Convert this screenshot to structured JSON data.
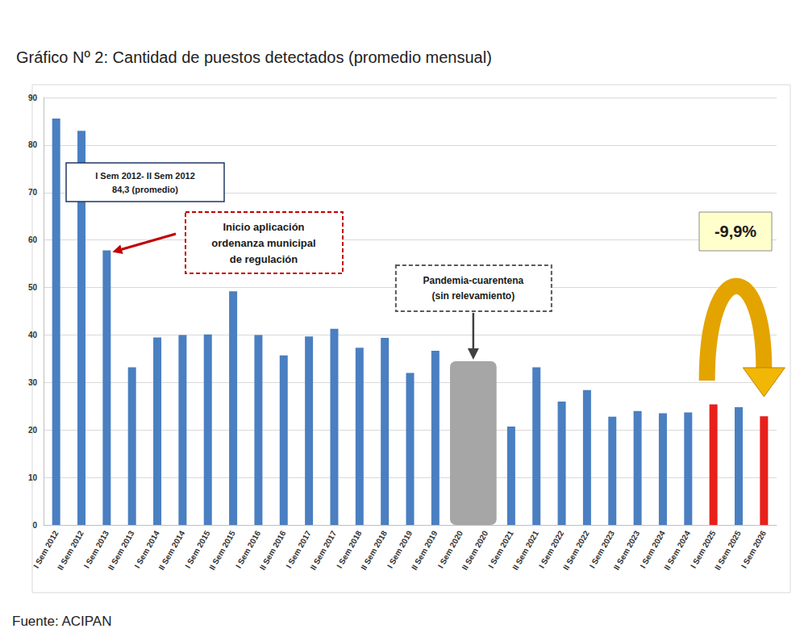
{
  "chart_data": {
    "type": "bar",
    "title": "Gráfico Nº 2: Cantidad de puestos detectados (promedio mensual)",
    "source": "Fuente: ACIPAN",
    "categories": [
      "I Sem 2012",
      "II Sem 2012",
      "I Sem 2013",
      "II Sem 2013",
      "I Sem 2014",
      "II Sem 2014",
      "I Sem 2015",
      "II Sem 2015",
      "I Sem 2016",
      "II Sem 2016",
      "I Sem 2017",
      "II Sem 2017",
      "I Sem 2018",
      "II Sem 2018",
      "I Sem 2019",
      "II Sem 2019",
      "I Sem 2020",
      "II Sem 2020",
      "I Sem 2021",
      "II Sem 2021",
      "I Sem 2022",
      "II Sem 2022",
      "I Sem 2023",
      "II Sem 2023",
      "I Sem 2024",
      "II Sem 2024",
      "I Sem 2025",
      "II Sem 2025",
      "I Sem 2026"
    ],
    "values": [
      85.6,
      83.0,
      57.8,
      33.2,
      39.5,
      40.0,
      40.1,
      49.2,
      40.0,
      35.7,
      39.7,
      41.3,
      37.3,
      39.4,
      32.0,
      36.7,
      null,
      null,
      20.7,
      33.2,
      26.0,
      28.4,
      22.8,
      24.0,
      23.5,
      23.7,
      25.4,
      24.8,
      22.9
    ],
    "colors": [
      "#4a7fc1",
      "#4a7fc1",
      "#4a7fc1",
      "#4a7fc1",
      "#4a7fc1",
      "#4a7fc1",
      "#4a7fc1",
      "#4a7fc1",
      "#4a7fc1",
      "#4a7fc1",
      "#4a7fc1",
      "#4a7fc1",
      "#4a7fc1",
      "#4a7fc1",
      "#4a7fc1",
      "#4a7fc1",
      "#4a7fc1",
      "#4a7fc1",
      "#4a7fc1",
      "#4a7fc1",
      "#4a7fc1",
      "#4a7fc1",
      "#4a7fc1",
      "#4a7fc1",
      "#4a7fc1",
      "#4a7fc1",
      "#e8201a",
      "#4a7fc1",
      "#e8201a"
    ],
    "ylim": [
      0,
      90
    ],
    "yticks": [
      0,
      10,
      20,
      30,
      40,
      50,
      60,
      70,
      80,
      90
    ],
    "grid": true,
    "annotations": [
      {
        "lines": [
          "I Sem 2012- II Sem 2012",
          "84,3 (promedio)"
        ]
      },
      {
        "lines": [
          "Inicio aplicación",
          "ordenanza municipal",
          "de regulación"
        ]
      },
      {
        "lines": [
          "Pandemia-cuarentena",
          "(sin relevamiento)"
        ]
      },
      {
        "lines": [
          "-9,9%"
        ]
      }
    ]
  }
}
